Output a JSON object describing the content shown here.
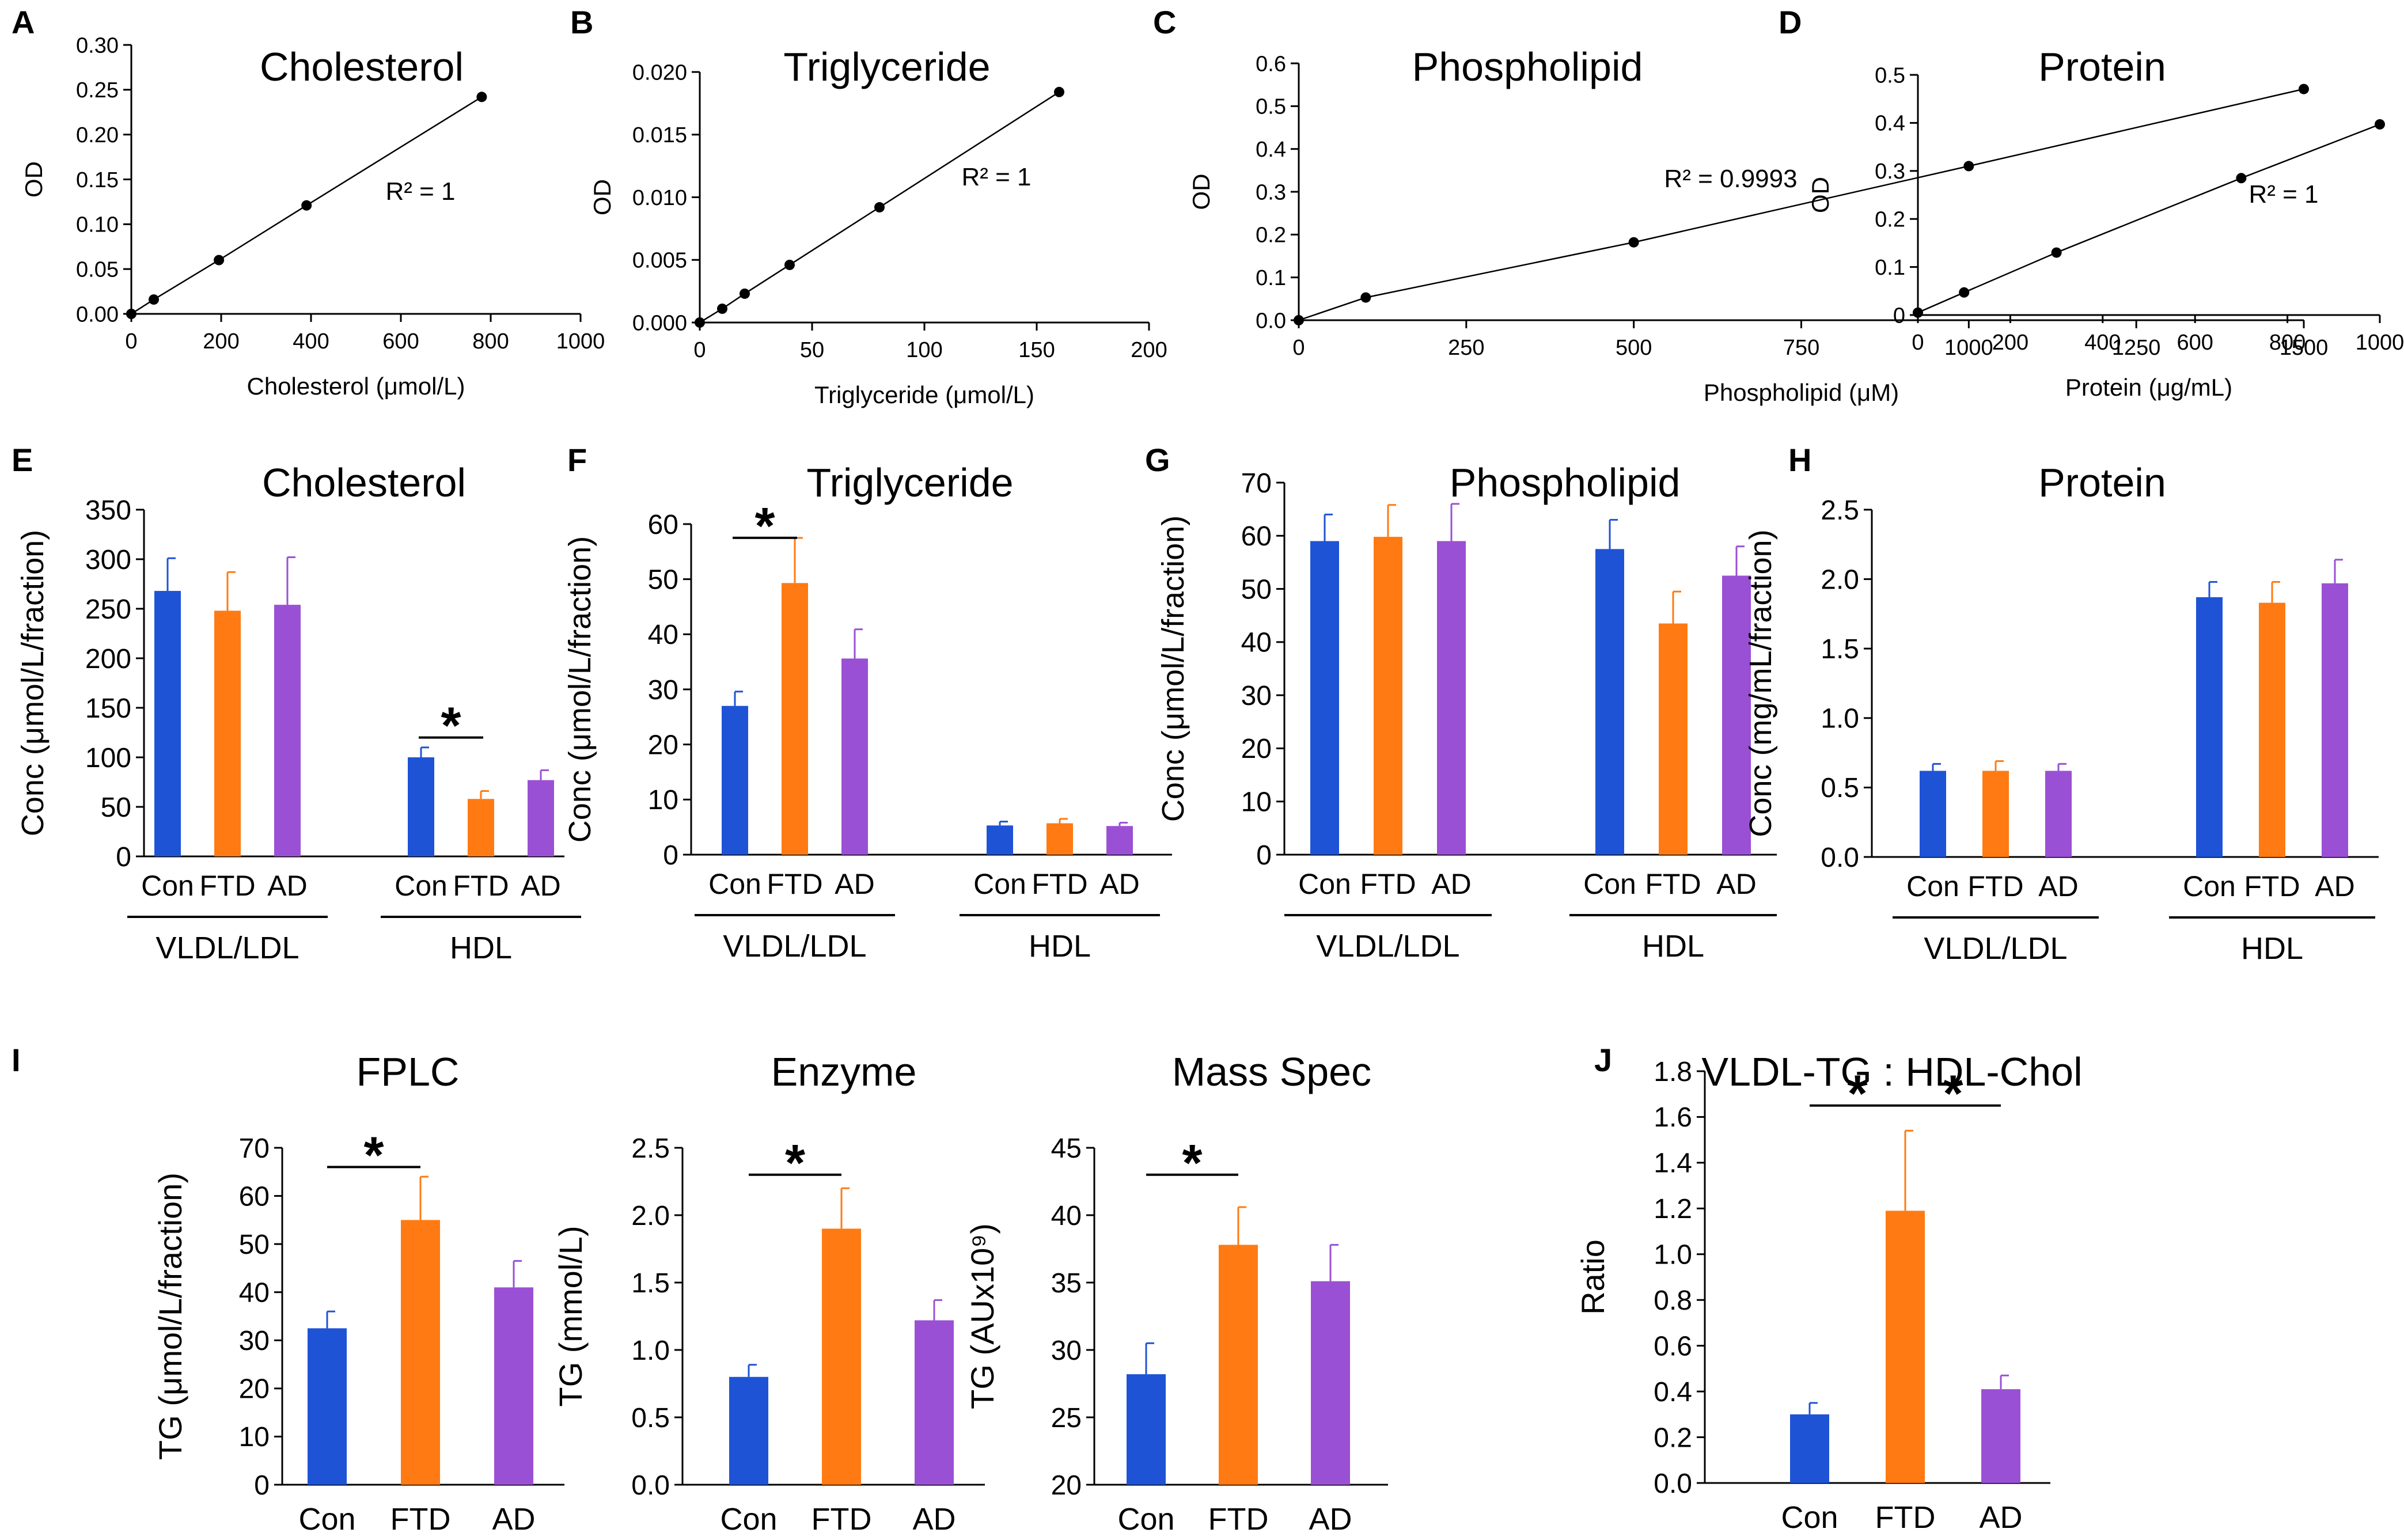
{
  "colors": {
    "con": "#1f53d6",
    "ftd": "#ff7a12",
    "ad": "#9a50d4",
    "axis": "#000000"
  },
  "chart_data": [
    {
      "id": "A",
      "type": "scatter",
      "letter": "A",
      "title": "Cholesterol",
      "xlabel": "Cholesterol (μmol/L)",
      "ylabel": "OD",
      "xlim": [
        0,
        1000
      ],
      "ylim": [
        0,
        0.3
      ],
      "xticks": [
        "0",
        "200",
        "400",
        "600",
        "800",
        "1000"
      ],
      "yticks": [
        "0.00",
        "0.05",
        "0.10",
        "0.15",
        "0.20",
        "0.25",
        "0.30"
      ],
      "x": [
        0,
        50,
        195,
        390,
        780
      ],
      "y": [
        0,
        0.016,
        0.06,
        0.121,
        0.242
      ],
      "r2": "R² = 1"
    },
    {
      "id": "B",
      "type": "scatter",
      "letter": "B",
      "title": "Triglyceride",
      "xlabel": "Triglyceride (μmol/L)",
      "ylabel": "OD",
      "xlim": [
        0,
        200
      ],
      "ylim": [
        0,
        0.02
      ],
      "xticks": [
        "0",
        "50",
        "100",
        "150",
        "200"
      ],
      "yticks": [
        "0.000",
        "0.005",
        "0.010",
        "0.015",
        "0.020"
      ],
      "x": [
        0,
        10,
        20,
        40,
        80,
        160
      ],
      "y": [
        0,
        0.0011,
        0.0023,
        0.0046,
        0.0092,
        0.0184
      ],
      "r2": "R² = 1"
    },
    {
      "id": "C",
      "type": "scatter",
      "letter": "C",
      "title": "Phospholipid",
      "xlabel": "Phospholipid (μM)",
      "ylabel": "OD",
      "xlim": [
        0,
        1500
      ],
      "ylim": [
        0,
        0.6
      ],
      "xticks": [
        "0",
        "250",
        "500",
        "750",
        "1000",
        "1250",
        "1500"
      ],
      "yticks": [
        "0.0",
        "0.1",
        "0.2",
        "0.3",
        "0.4",
        "0.5",
        "0.6"
      ],
      "x": [
        0,
        100,
        500,
        1000,
        1500
      ],
      "y": [
        0,
        0.053,
        0.182,
        0.36,
        0.54
      ],
      "r2": "R² = 0.9993"
    },
    {
      "id": "D",
      "type": "scatter",
      "letter": "D",
      "title": "Protein",
      "xlabel": "Protein (μg/mL)",
      "ylabel": "OD",
      "xlim": [
        0,
        1000
      ],
      "ylim": [
        0,
        0.5
      ],
      "xticks": [
        "0",
        "200",
        "400",
        "600",
        "800",
        "1000"
      ],
      "yticks": [
        "0",
        "0.1",
        "0.2",
        "0.3",
        "0.4",
        "0.5"
      ],
      "x": [
        0,
        100,
        300,
        700,
        1000
      ],
      "y": [
        0.005,
        0.047,
        0.13,
        0.285,
        0.397
      ],
      "r2": "R² = 1"
    },
    {
      "id": "E",
      "type": "bar",
      "letter": "E",
      "title": "Cholesterol",
      "ylabel": "Conc (μmol/L/fraction)",
      "ylim": [
        0,
        350
      ],
      "yticks": [
        "0",
        "50",
        "100",
        "150",
        "200",
        "250",
        "300",
        "350"
      ],
      "categories": [
        "Con",
        "FTD",
        "AD"
      ],
      "groups": [
        {
          "name": "VLDL/LDL",
          "values": [
            268,
            248,
            254
          ],
          "errors": [
            33,
            39,
            48
          ]
        },
        {
          "name": "HDL",
          "values": [
            100,
            58,
            77
          ],
          "errors": [
            10,
            8,
            10
          ]
        }
      ],
      "significance": [
        {
          "label": "*",
          "group": 1,
          "from": 0,
          "to": 1,
          "y": 120
        }
      ]
    },
    {
      "id": "F",
      "type": "bar",
      "letter": "F",
      "title": "Triglyceride",
      "ylabel": "Conc (μmol/L/fraction)",
      "ylim": [
        0,
        60
      ],
      "yticks": [
        "0",
        "10",
        "20",
        "30",
        "40",
        "50",
        "60"
      ],
      "categories": [
        "Con",
        "FTD",
        "AD"
      ],
      "groups": [
        {
          "name": "VLDL/LDL",
          "values": [
            27,
            49.3,
            35.6
          ],
          "errors": [
            2.6,
            8.2,
            5.3
          ]
        },
        {
          "name": "HDL",
          "values": [
            5.3,
            5.7,
            5.2
          ],
          "errors": [
            0.7,
            0.8,
            0.6
          ]
        }
      ],
      "significance": [
        {
          "label": "*",
          "group": 0,
          "from": 0,
          "to": 1,
          "y": 57.5
        }
      ]
    },
    {
      "id": "G",
      "type": "bar",
      "letter": "G",
      "title": "Phospholipid",
      "ylabel": "Conc (μmol/L/fraction)",
      "ylim": [
        0,
        70
      ],
      "yticks": [
        "0",
        "10",
        "20",
        "30",
        "40",
        "50",
        "60",
        "70"
      ],
      "categories": [
        "Con",
        "FTD",
        "AD"
      ],
      "groups": [
        {
          "name": "VLDL/LDL",
          "values": [
            59,
            59.8,
            59
          ],
          "errors": [
            5,
            6,
            7
          ]
        },
        {
          "name": "HDL",
          "values": [
            57.5,
            43.5,
            52.5
          ],
          "errors": [
            5.5,
            6,
            5.5
          ]
        }
      ],
      "significance": []
    },
    {
      "id": "H",
      "type": "bar",
      "letter": "H",
      "title": "Protein",
      "ylabel": "Conc (mg/mL/fraction)",
      "ylim": [
        0,
        2.5
      ],
      "yticks": [
        "0.0",
        "0.5",
        "1.0",
        "1.5",
        "2.0",
        "2.5"
      ],
      "categories": [
        "Con",
        "FTD",
        "AD"
      ],
      "groups": [
        {
          "name": "VLDL/LDL",
          "values": [
            0.62,
            0.62,
            0.62
          ],
          "errors": [
            0.05,
            0.07,
            0.05
          ]
        },
        {
          "name": "HDL",
          "values": [
            1.87,
            1.83,
            1.97
          ],
          "errors": [
            0.11,
            0.15,
            0.17
          ]
        }
      ],
      "significance": []
    },
    {
      "id": "I1",
      "type": "bar",
      "letter": "I",
      "title": "FPLC",
      "ylabel": "TG (μmol/L/fraction)",
      "ylim": [
        0,
        70
      ],
      "yticks": [
        "0",
        "10",
        "20",
        "30",
        "40",
        "50",
        "60",
        "70"
      ],
      "categories": [
        "Con",
        "FTD",
        "AD"
      ],
      "groups": [
        {
          "name": "",
          "values": [
            32.5,
            55,
            41
          ],
          "errors": [
            3.5,
            9,
            5.5
          ]
        }
      ],
      "significance": [
        {
          "label": "*",
          "group": 0,
          "from": 0,
          "to": 1,
          "y": 66
        }
      ]
    },
    {
      "id": "I2",
      "type": "bar",
      "letter": "",
      "title": "Enzyme",
      "ylabel": "TG (mmol/L)",
      "ylim": [
        0,
        2.5
      ],
      "yticks": [
        "0.0",
        "0.5",
        "1.0",
        "1.5",
        "2.0",
        "2.5"
      ],
      "categories": [
        "Con",
        "FTD",
        "AD"
      ],
      "groups": [
        {
          "name": "",
          "values": [
            0.8,
            1.9,
            1.22
          ],
          "errors": [
            0.09,
            0.3,
            0.15
          ]
        }
      ],
      "significance": [
        {
          "label": "*",
          "group": 0,
          "from": 0,
          "to": 1,
          "y": 2.3
        }
      ]
    },
    {
      "id": "I3",
      "type": "bar",
      "letter": "",
      "title": "Mass Spec",
      "ylabel": "TG (AUx10⁹)",
      "ylim": [
        20,
        45
      ],
      "yticks": [
        "20",
        "25",
        "30",
        "35",
        "40",
        "45"
      ],
      "categories": [
        "Con",
        "FTD",
        "AD"
      ],
      "groups": [
        {
          "name": "",
          "values": [
            28.2,
            37.8,
            35.1
          ],
          "errors": [
            2.3,
            2.8,
            2.7
          ]
        }
      ],
      "significance": [
        {
          "label": "*",
          "group": 0,
          "from": 0,
          "to": 1,
          "y": 43
        }
      ]
    },
    {
      "id": "J",
      "type": "bar",
      "letter": "J",
      "title": "VLDL-TG : HDL-Chol",
      "ylabel": "Ratio",
      "ylim": [
        0,
        1.8
      ],
      "yticks": [
        "0.0",
        "0.2",
        "0.4",
        "0.6",
        "0.8",
        "1.0",
        "1.2",
        "1.4",
        "1.6",
        "1.8"
      ],
      "categories": [
        "Con",
        "FTD",
        "AD"
      ],
      "groups": [
        {
          "name": "",
          "values": [
            0.3,
            1.19,
            0.41
          ],
          "errors": [
            0.05,
            0.35,
            0.06
          ]
        }
      ],
      "significance": [
        {
          "label": "*",
          "group": 0,
          "from": 0,
          "to": 1,
          "y": 1.65
        },
        {
          "label": "*",
          "group": 0,
          "from": 1,
          "to": 2,
          "y": 1.65
        }
      ]
    }
  ]
}
